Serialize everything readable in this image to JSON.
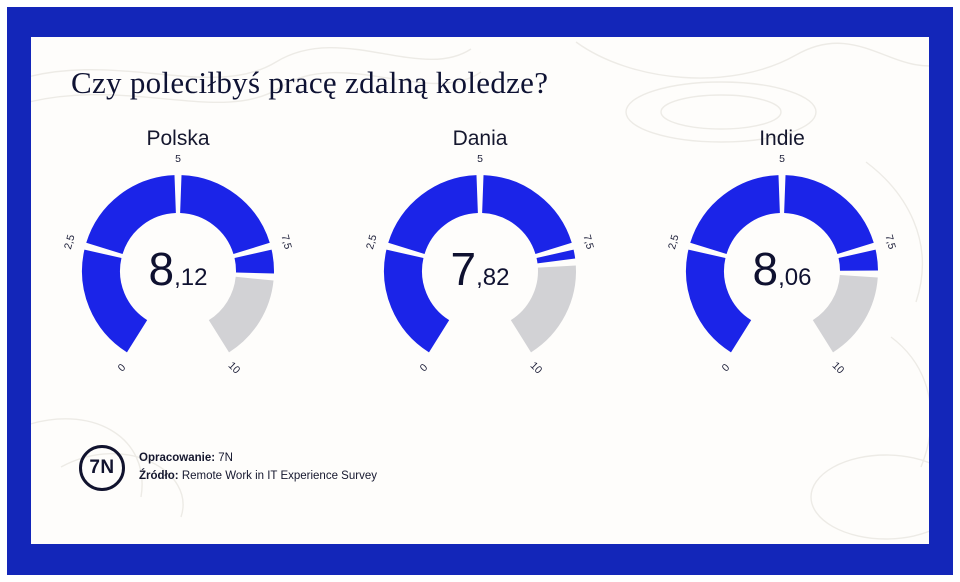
{
  "title": "Czy poleciłbyś pracę zdalną koledze?",
  "chart_data": {
    "type": "gauge",
    "title": "Czy poleciłbyś pracę zdalną koledze?",
    "min": 0,
    "max": 10,
    "ticks": [
      "0",
      "2,5",
      "5",
      "7,5",
      "10"
    ],
    "tick_values": [
      0,
      2.5,
      5,
      7.5,
      10
    ],
    "series": [
      {
        "name": "Polska",
        "value": 8.12,
        "display": "8,12"
      },
      {
        "name": "Dania",
        "value": 7.82,
        "display": "7,82"
      },
      {
        "name": "Indie",
        "value": 8.06,
        "display": "8,06"
      }
    ],
    "colors": {
      "filled": "#1b24e8",
      "empty": "#d2d2d5",
      "value_text": "#0f1130",
      "tick_text": "#1c1e38"
    },
    "layout": {
      "start_angle_deg": -150,
      "end_angle_deg": 150,
      "gap_at_bottom": true,
      "legend": "none",
      "grid": false
    }
  },
  "frame": {
    "border_color": "#1326b9",
    "background": "#fefdfb"
  },
  "footer": {
    "logo_text": "7N",
    "line1_label": "Opracowanie:",
    "line1_value": "7N",
    "line2_label": "Źródło:",
    "line2_value": "Remote Work in IT Experience Survey"
  }
}
